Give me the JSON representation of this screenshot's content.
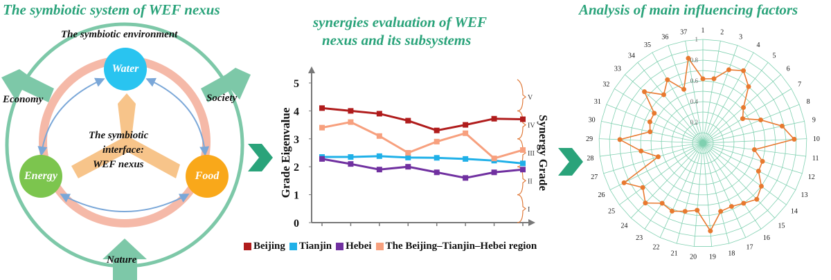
{
  "panels": {
    "left_title": "The symbiotic system of WEF nexus",
    "middle_title_line1": "synergies evaluation of WEF",
    "middle_title_line2": "nexus and its subsystems",
    "right_title": "Analysis of main influencing factors"
  },
  "diagram": {
    "environment_label": "The symbiotic environment",
    "interface_line1": "The symbiotic",
    "interface_line2": "interface:",
    "interface_line3": "WEF nexus",
    "nodes": {
      "water": "Water",
      "energy": "Energy",
      "food": "Food"
    },
    "forces": {
      "economy": "Economy",
      "society": "Society",
      "nature": "Nature"
    },
    "colors": {
      "water": "#29c4f0",
      "energy": "#7cc54e",
      "food": "#f9a81a",
      "ring": "#f5b9a8",
      "outer_ring": "#7dc8a8",
      "interface": "#f7c48a",
      "arrows": "#7aa7d8"
    }
  },
  "chart_data": [
    {
      "type": "line",
      "ylabel": "Grade Eigenvalue",
      "y2label": "Synergy Grade",
      "ylim": [
        0,
        5
      ],
      "yticks": [
        "0",
        "1",
        "2",
        "3",
        "4",
        "5"
      ],
      "grades": [
        "I",
        "II",
        "III",
        "IV",
        "V"
      ],
      "series": [
        {
          "name": "Beijing",
          "color": "#b01c1c",
          "values": [
            4.1,
            4.0,
            3.9,
            3.65,
            3.3,
            3.5,
            3.72,
            3.7
          ]
        },
        {
          "name": "Tianjin",
          "color": "#1fb0e8",
          "values": [
            2.35,
            2.35,
            2.38,
            2.33,
            2.32,
            2.28,
            2.22,
            2.12
          ]
        },
        {
          "name": "Hebei",
          "color": "#7030a0",
          "values": [
            2.28,
            2.1,
            1.9,
            2.0,
            1.8,
            1.6,
            1.8,
            1.9
          ]
        },
        {
          "name": "The Beijing–Tianjin–Hebei region",
          "color": "#f7a07e",
          "values": [
            3.4,
            3.6,
            3.1,
            2.5,
            2.9,
            3.2,
            2.3,
            2.6
          ]
        }
      ]
    },
    {
      "type": "radar",
      "categories": [
        "1",
        "2",
        "3",
        "4",
        "5",
        "6",
        "7",
        "8",
        "9",
        "10",
        "11",
        "12",
        "13",
        "14",
        "15",
        "16",
        "17",
        "18",
        "19",
        "20",
        "21",
        "22",
        "23",
        "24",
        "25",
        "26",
        "27",
        "28",
        "29",
        "30",
        "31",
        "32",
        "33",
        "34",
        "35",
        "36",
        "37"
      ],
      "radial_ticks": [
        "0.2",
        "0.4",
        "0.6",
        "0.8",
        "1"
      ],
      "rlim": [
        0,
        1
      ],
      "color": "#e8792f",
      "values": [
        0.62,
        0.63,
        0.75,
        0.8,
        0.7,
        0.52,
        0.45,
        0.6,
        0.78,
        0.88,
        0.5,
        0.6,
        0.6,
        0.7,
        0.75,
        0.7,
        0.67,
        0.68,
        0.85,
        0.65,
        0.68,
        0.72,
        0.7,
        0.8,
        0.72,
        0.85,
        0.45,
        0.6,
        0.8,
        0.52,
        0.55,
        0.55,
        0.75,
        0.6,
        0.7,
        0.55,
        0.83
      ]
    }
  ]
}
